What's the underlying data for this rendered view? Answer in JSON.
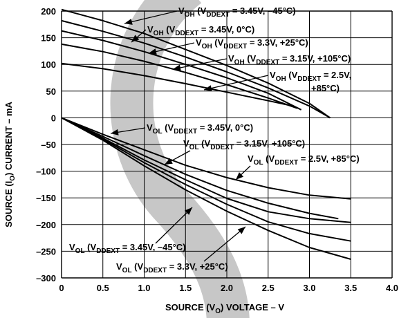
{
  "chart_data": {
    "type": "line",
    "xlabel": "SOURCE (VO) VOLTAGE – V",
    "ylabel": "SOURCE (IO) CURRENT – mA",
    "xlim": [
      0,
      4.0
    ],
    "ylim": [
      -300,
      200
    ],
    "x_ticks": [
      "0",
      "0.5",
      "1.0",
      "1.5",
      "2.0",
      "2.5",
      "3.0",
      "3.5",
      "4.0"
    ],
    "y_ticks": [
      "200",
      "150",
      "100",
      "50",
      "0",
      "–50",
      "–100",
      "–150",
      "–200",
      "–250",
      "–300"
    ],
    "grid": true,
    "series": [
      {
        "name": "VOH (VDDEXT = 3.45V, –45°C)",
        "x": [
          0,
          0.5,
          1.0,
          1.5,
          2.0,
          2.5,
          3.0,
          3.25
        ],
        "y": [
          203,
          182,
          158,
          128,
          98,
          65,
          27,
          0
        ]
      },
      {
        "name": "VOH (VDDEXT = 3.45V, 0°C)",
        "x": [
          0,
          0.5,
          1.0,
          1.5,
          2.0,
          2.5,
          3.0,
          3.25
        ],
        "y": [
          182,
          162,
          140,
          114,
          86,
          56,
          22,
          0
        ]
      },
      {
        "name": "VOH (VDDEXT = 3.3V, +25°C)",
        "x": [
          0,
          0.5,
          1.0,
          1.5,
          2.0,
          2.5,
          2.9
        ],
        "y": [
          163,
          145,
          124,
          100,
          75,
          46,
          15
        ]
      },
      {
        "name": "VOH (VDDEXT = 3.15V, +105°C)",
        "x": [
          0,
          0.5,
          1.0,
          1.5,
          2.0,
          2.5,
          2.85
        ],
        "y": [
          138,
          124,
          106,
          85,
          62,
          37,
          18
        ]
      },
      {
        "name": "VOH (VDDEXT = 2.5V, +85°C)",
        "x": [
          0,
          0.5,
          1.0,
          1.5,
          2.0,
          2.5,
          2.8
        ],
        "y": [
          102,
          92,
          79,
          64,
          48,
          32,
          22
        ]
      },
      {
        "name": "VOL (VDDEXT = 3.45V, –45°C)",
        "x": [
          0,
          0.5,
          1.0,
          1.5,
          2.0,
          2.5,
          3.0,
          3.5
        ],
        "y": [
          0,
          -42,
          -90,
          -135,
          -175,
          -211,
          -243,
          -265
        ]
      },
      {
        "name": "VOL (VDDEXT = 3.3V, +25°C)",
        "x": [
          0,
          0.5,
          1.0,
          1.5,
          2.0,
          2.5,
          3.0,
          3.5
        ],
        "y": [
          0,
          -40,
          -84,
          -125,
          -162,
          -195,
          -217,
          -231
        ]
      },
      {
        "name": "VOL (VDDEXT = 3.45V, 0°C)",
        "x": [
          0,
          0.5,
          1.0,
          1.5,
          2.0,
          2.5,
          3.0,
          3.5
        ],
        "y": [
          0,
          -38,
          -79,
          -116,
          -151,
          -176,
          -189,
          -196
        ]
      },
      {
        "name": "VOL (VDDEXT = 3.15V, +105°C)",
        "x": [
          0,
          0.5,
          1.0,
          1.5,
          2.0,
          2.5,
          3.0,
          3.35
        ],
        "y": [
          0,
          -35,
          -71,
          -106,
          -136,
          -160,
          -179,
          -189
        ]
      },
      {
        "name": "VOL (VDDEXT = 2.5V, +85°C)",
        "x": [
          0,
          0.5,
          1.0,
          1.5,
          2.0,
          2.5,
          3.0,
          3.5
        ],
        "y": [
          0,
          -31,
          -60,
          -89,
          -112,
          -131,
          -145,
          -152
        ]
      }
    ],
    "annotations": [
      {
        "text": [
          "V",
          "OH",
          " (V",
          "DDEXT",
          " = 3.45V, –45°C)"
        ],
        "series": 0
      },
      {
        "text": [
          "V",
          "OH",
          " (V",
          "DDEXT",
          " = 3.45V, 0°C)"
        ],
        "series": 1
      },
      {
        "text": [
          "V",
          "OH",
          " (V",
          "DDEXT",
          " = 3.3V, +25°C)"
        ],
        "series": 2
      },
      {
        "text": [
          "V",
          "OH",
          " (V",
          "DDEXT",
          " = 3.15V, +105°C)"
        ],
        "series": 3
      },
      {
        "text": [
          "V",
          "OH",
          " (V",
          "DDEXT",
          " = 2.5V,"
        ],
        "series": 4,
        "line2": "+85°C)"
      },
      {
        "text": [
          "V",
          "OL",
          " (V",
          "DDEXT",
          " = 3.45V, 0°C)"
        ],
        "series": 7
      },
      {
        "text": [
          "V",
          "OL",
          " (V",
          "DDEXT",
          " = 3.15V, +105°C)"
        ],
        "series": 8
      },
      {
        "text": [
          "V",
          "OL",
          " (V",
          "DDEXT",
          " = 2.5V, +85°C)"
        ],
        "series": 9
      },
      {
        "text": [
          "V",
          "OL",
          " (V",
          "DDEXT",
          " = 3.45V, –45°C)"
        ],
        "series": 5
      },
      {
        "text": [
          "V",
          "OL",
          " (V",
          "DDEXT",
          " = 3.3V, +25°C)"
        ],
        "series": 6
      }
    ],
    "colors": {
      "lines": "#000000",
      "grid": "#000000",
      "watermark": "#bdbdbd"
    }
  }
}
